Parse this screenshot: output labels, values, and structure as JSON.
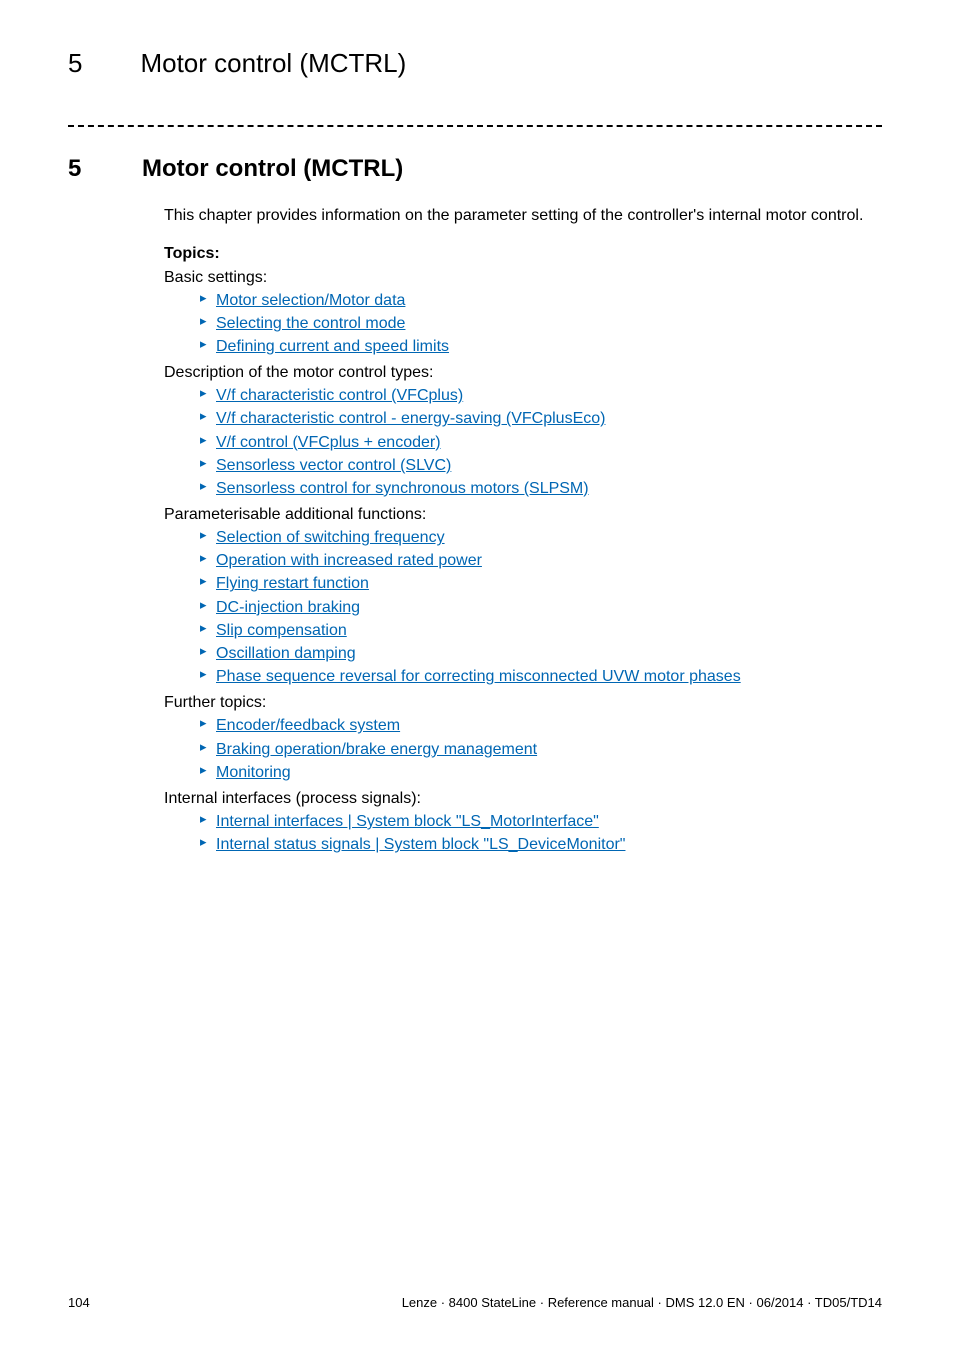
{
  "colors": {
    "link": "#0066b3",
    "text": "#000000",
    "background": "#ffffff"
  },
  "typography": {
    "body_fontsize": 16,
    "heading_fontsize": 26,
    "chapter_fontsize": 24,
    "footer_fontsize": 13
  },
  "running_head": {
    "number": "5",
    "title": "Motor control (MCTRL)"
  },
  "chapter": {
    "number": "5",
    "title": "Motor control (MCTRL)"
  },
  "intro": "This chapter provides information on the parameter setting of the controller's internal motor control.",
  "topics_label": "Topics:",
  "groups": [
    {
      "label": "Basic settings:",
      "items": [
        "Motor selection/Motor data",
        "Selecting the control mode",
        "Defining current and speed limits"
      ]
    },
    {
      "label": "Description of the motor control types:",
      "items": [
        "V/f characteristic control (VFCplus)",
        "V/f characteristic control - energy-saving (VFCplusEco)",
        "V/f control (VFCplus + encoder)",
        "Sensorless vector control (SLVC)",
        "Sensorless control for synchronous motors (SLPSM)"
      ]
    },
    {
      "label": "Parameterisable additional functions:",
      "items": [
        "Selection of switching frequency",
        "Operation with increased rated power",
        "Flying restart function",
        "DC-injection braking",
        "Slip compensation",
        "Oscillation damping",
        "Phase sequence reversal for correcting misconnected UVW motor phases"
      ]
    },
    {
      "label": "Further topics:",
      "items": [
        "Encoder/feedback system",
        "Braking operation/brake energy management",
        "Monitoring"
      ]
    },
    {
      "label": "Internal interfaces (process signals):",
      "items": [
        "Internal interfaces | System block \"LS_MotorInterface\"",
        "Internal status signals | System block \"LS_DeviceMonitor\""
      ]
    }
  ],
  "footer": {
    "page_number": "104",
    "imprint": "Lenze · 8400 StateLine · Reference manual · DMS 12.0 EN · 06/2014 · TD05/TD14"
  }
}
